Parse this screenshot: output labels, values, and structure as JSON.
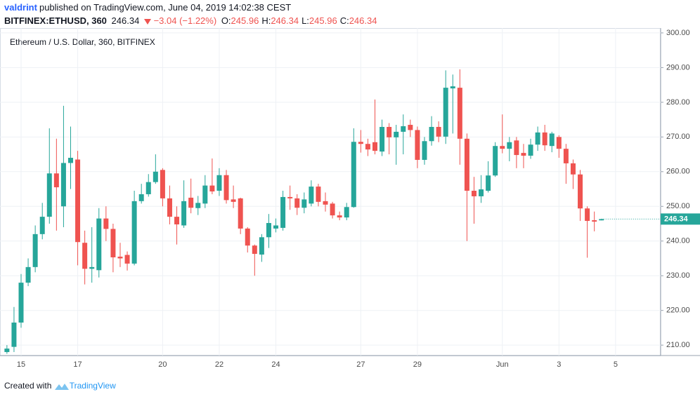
{
  "header": {
    "author": "valdrint",
    "published": "published on TradingView.com, June 04, 2019 14:02:38 CEST",
    "symbol": "BITFINEX:ETHUSD, 360",
    "last": "246.34",
    "change": "−3.04 (−1.22%)",
    "ohlc": [
      {
        "label": "O:",
        "value": "245.96"
      },
      {
        "label": "H:",
        "value": "246.34"
      },
      {
        "label": "L:",
        "value": "245.96"
      },
      {
        "label": "C:",
        "value": "246.34"
      }
    ]
  },
  "chart_data": {
    "type": "candlestick",
    "title": "Ethereum / U.S. Dollar, 360, BITFINEX",
    "up_color": "#26a69a",
    "down_color": "#ef5350",
    "grid": true,
    "categories": [
      null,
      null,
      "15",
      null,
      null,
      null,
      null,
      null,
      null,
      null,
      "17",
      null,
      null,
      null,
      null,
      null,
      null,
      null,
      null,
      null,
      null,
      null,
      "20",
      null,
      null,
      null,
      null,
      null,
      null,
      null,
      "22",
      null,
      null,
      null,
      null,
      null,
      null,
      null,
      "24",
      null,
      null,
      null,
      null,
      null,
      null,
      null,
      null,
      null,
      null,
      null,
      "27",
      null,
      null,
      null,
      null,
      null,
      null,
      null,
      "29",
      null,
      null,
      null,
      null,
      null,
      null,
      null,
      null,
      null,
      null,
      null,
      "Jun",
      null,
      null,
      null,
      null,
      null,
      null,
      null,
      "3",
      null,
      null,
      null,
      null,
      null,
      null,
      null,
      "5"
    ],
    "open": [
      208,
      209.5,
      216.5,
      228,
      232.5,
      242,
      247,
      259.5,
      250,
      262.5,
      263.5,
      239.5,
      232,
      231.6,
      246.5,
      243.5,
      235.5,
      236,
      233.5,
      251.5,
      253.5,
      257,
      260.5,
      252.3,
      247,
      244.5,
      252.5,
      249.5,
      250.8,
      256,
      254.5,
      259,
      252,
      252.3,
      243.6,
      238.7,
      236.1,
      241.1,
      243.6,
      243.8,
      252.7,
      252.3,
      249.6,
      250.8,
      255.7,
      251.5,
      250.8,
      247.4,
      246.8,
      249.8,
      268.6,
      268,
      268.5,
      265.8,
      272.9,
      269.9,
      271.5,
      273.5,
      272,
      263.4,
      268.8,
      272.9,
      270.1,
      284,
      284.2,
      269.5,
      254.5,
      252.9,
      254.5,
      258.9,
      267.4,
      266.6,
      269,
      265.4,
      264.6,
      267.8,
      271.3,
      267.4,
      270,
      266.6,
      262.4,
      259.2,
      249.4,
      246,
      245.96,
      null,
      null
    ],
    "high": [
      210,
      221,
      230.5,
      235,
      244.5,
      251,
      272.5,
      269.5,
      279,
      273,
      266,
      243,
      244,
      249.5,
      250,
      245,
      239.5,
      237,
      254.5,
      256.5,
      259.3,
      265,
      261,
      256,
      250,
      257.5,
      258,
      253,
      259,
      263.8,
      261,
      260.5,
      256,
      252.5,
      244,
      239,
      242,
      247.8,
      246.5,
      254.5,
      256,
      253.5,
      254,
      257.5,
      256.5,
      254,
      251.3,
      248.5,
      251,
      272.5,
      272,
      269.5,
      280.8,
      275,
      274,
      273.5,
      276.5,
      275,
      273,
      270,
      276,
      274.5,
      289.2,
      288,
      289.5,
      271,
      258.5,
      259,
      263,
      268.5,
      276.5,
      270,
      270,
      268,
      269.5,
      273,
      273.5,
      271.5,
      270.5,
      268,
      263.5,
      260.5,
      250,
      248.5,
      246.34,
      null,
      null
    ],
    "low": [
      207.5,
      208,
      215,
      227,
      231,
      240.5,
      245,
      243,
      244,
      255,
      233,
      227.5,
      228,
      229.5,
      240,
      231,
      232.5,
      231.5,
      233,
      250.8,
      252.8,
      256.5,
      250,
      244.8,
      239,
      243.8,
      248,
      247.5,
      249.5,
      253.5,
      253,
      250.8,
      249.5,
      242,
      236.7,
      230,
      234,
      238,
      242.5,
      243,
      249,
      247.5,
      248,
      250,
      250,
      248.5,
      246.5,
      246,
      246,
      249.6,
      265.5,
      264.5,
      265,
      264.5,
      265,
      262,
      265,
      270,
      261,
      262,
      267.5,
      268.5,
      268,
      271,
      262,
      240,
      245,
      251,
      254,
      258.5,
      265.3,
      263,
      261,
      261,
      263.7,
      266,
      266,
      265.6,
      264,
      256.5,
      255,
      245.8,
      235.2,
      242.8,
      245.96,
      null,
      null
    ],
    "close": [
      209,
      216.5,
      228,
      232.5,
      242,
      247,
      259.5,
      255.5,
      262.5,
      264,
      239.7,
      232,
      232.5,
      246.5,
      243.5,
      235.3,
      235,
      233.5,
      251.5,
      253.5,
      257,
      260,
      252.3,
      247,
      244.8,
      251.5,
      249.6,
      251,
      256,
      254.3,
      259,
      251.8,
      251.3,
      243.6,
      238.7,
      236.3,
      241.1,
      245.2,
      244.5,
      252.7,
      252.3,
      249.6,
      252,
      255.7,
      251.3,
      250.5,
      247.4,
      246.8,
      249.8,
      268.6,
      268,
      266.4,
      266,
      272.9,
      269.9,
      271.5,
      273.1,
      272,
      263.4,
      268.8,
      272.9,
      270.1,
      284.2,
      284.6,
      269.5,
      254.5,
      252.9,
      254.9,
      258.9,
      267.4,
      266.6,
      268.5,
      264.8,
      264.6,
      267.8,
      271.3,
      267.6,
      271,
      266.6,
      262.4,
      259.2,
      249.4,
      245.8,
      245.6,
      246.34,
      null,
      null
    ],
    "ylim": [
      207,
      301.4
    ],
    "yticks": [
      {
        "value": 210,
        "label": "210.00"
      },
      {
        "value": 220,
        "label": "220.00"
      },
      {
        "value": 230,
        "label": "230.00"
      },
      {
        "value": 240,
        "label": "240.00"
      },
      {
        "value": 250,
        "label": "250.00"
      },
      {
        "value": 260,
        "label": "260.00"
      },
      {
        "value": 270,
        "label": "270.00"
      },
      {
        "value": 280,
        "label": "280.00"
      },
      {
        "value": 290,
        "label": "290.00"
      },
      {
        "value": 300,
        "label": "300.00"
      }
    ]
  },
  "footer": {
    "created": "Created with",
    "brand": "TradingView"
  }
}
